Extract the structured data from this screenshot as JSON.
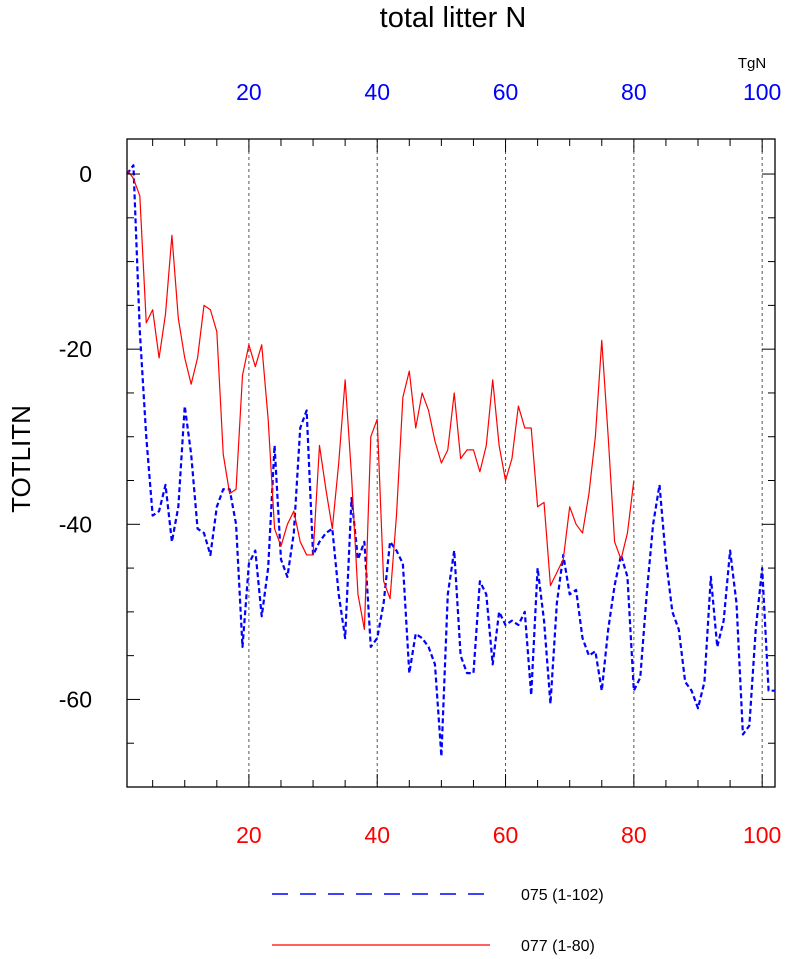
{
  "chart_data": {
    "type": "line",
    "title": "total litter N",
    "ylabel": "TOTLITN",
    "units": "TgN",
    "xlim": [
      1,
      102
    ],
    "ylim": [
      -70,
      4
    ],
    "x_ticks": [
      20,
      40,
      60,
      80,
      100
    ],
    "x_tick_labels": [
      "20",
      "40",
      "60",
      "80",
      "100"
    ],
    "y_ticks": [
      0,
      -20,
      -40,
      -60
    ],
    "y_tick_labels": [
      "0",
      "-20",
      "-40",
      "-60"
    ],
    "grid": "vertical dashed lines at major x ticks",
    "axis_colors": {
      "bottom": "#ff0000",
      "top": "#0000ff"
    },
    "legend_position": "bottom",
    "series": [
      {
        "name": "075 (1-102)",
        "color": "#0000ff",
        "dash": "dashed",
        "x_start": 1,
        "values": [
          0,
          1,
          -18,
          -30,
          -39,
          -38.5,
          -35.5,
          -42,
          -38,
          -26.5,
          -32,
          -40.5,
          -41,
          -43.5,
          -38,
          -36,
          -36,
          -40,
          -54,
          -44.5,
          -43,
          -50.5,
          -45,
          -31,
          -44,
          -46,
          -41,
          -29,
          -27,
          -43.5,
          -42,
          -41,
          -40.5,
          -48,
          -53,
          -37,
          -44,
          -42,
          -54,
          -53,
          -49,
          -42,
          -43,
          -44.5,
          -57,
          -52.5,
          -53,
          -54,
          -56,
          -66.5,
          -48,
          -43,
          -55,
          -57,
          -57,
          -46.5,
          -48,
          -56,
          -50,
          -51.5,
          -51,
          -51.5,
          -50,
          -59.5,
          -45,
          -51,
          -60.5,
          -49,
          -43.5,
          -48,
          -47.5,
          -53,
          -55,
          -54.5,
          -59,
          -52,
          -47,
          -43.5,
          -46,
          -59,
          -57.5,
          -48,
          -40,
          -35.5,
          -44,
          -50,
          -52,
          -58,
          -59,
          -61,
          -58,
          -46,
          -54,
          -51,
          -43,
          -49,
          -64,
          -63,
          -52,
          -45,
          -59,
          -59
        ]
      },
      {
        "name": "077 (1-80)",
        "color": "#ff0000",
        "dash": "solid",
        "x_start": 1,
        "values": [
          0.5,
          -0.5,
          -2.5,
          -17,
          -15.5,
          -21,
          -16,
          -7,
          -16.5,
          -21,
          -24,
          -21,
          -15,
          -15.5,
          -18,
          -32,
          -36.5,
          -36,
          -23,
          -19.5,
          -22,
          -19.5,
          -28,
          -40.5,
          -42.5,
          -40,
          -38.5,
          -42,
          -43.5,
          -43.5,
          -31,
          -36,
          -40.5,
          -33,
          -23.5,
          -34.5,
          -48,
          -52,
          -30,
          -28,
          -46.5,
          -48.5,
          -39,
          -25.5,
          -22.5,
          -29,
          -25,
          -27,
          -30.5,
          -33,
          -31.5,
          -25,
          -32.5,
          -31.5,
          -31.5,
          -34,
          -31,
          -23.5,
          -31,
          -35,
          -32.5,
          -26.5,
          -29,
          -29,
          -38,
          -37.5,
          -47,
          -45.5,
          -44,
          -38,
          -40,
          -41,
          -36.5,
          -30,
          -19,
          -30,
          -42,
          -44,
          -41,
          -35
        ]
      }
    ]
  }
}
